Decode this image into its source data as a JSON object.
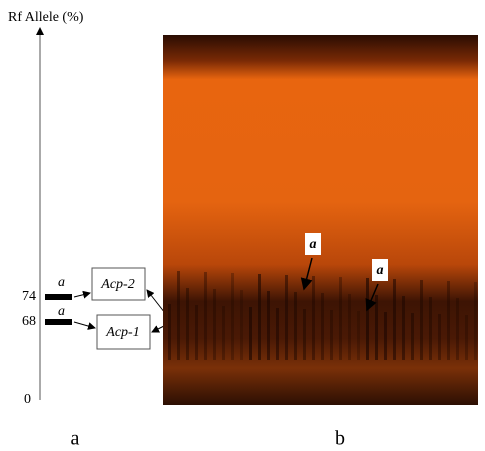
{
  "axis_title": "Rf Allele (%)",
  "axis_labels": [
    "74",
    "68",
    "0"
  ],
  "band_alleles": [
    "a",
    "a"
  ],
  "loci": [
    "Acp-2",
    "Acp-1"
  ],
  "gel_labels": [
    "a",
    "a"
  ],
  "panel_labels": [
    "a",
    "b"
  ]
}
